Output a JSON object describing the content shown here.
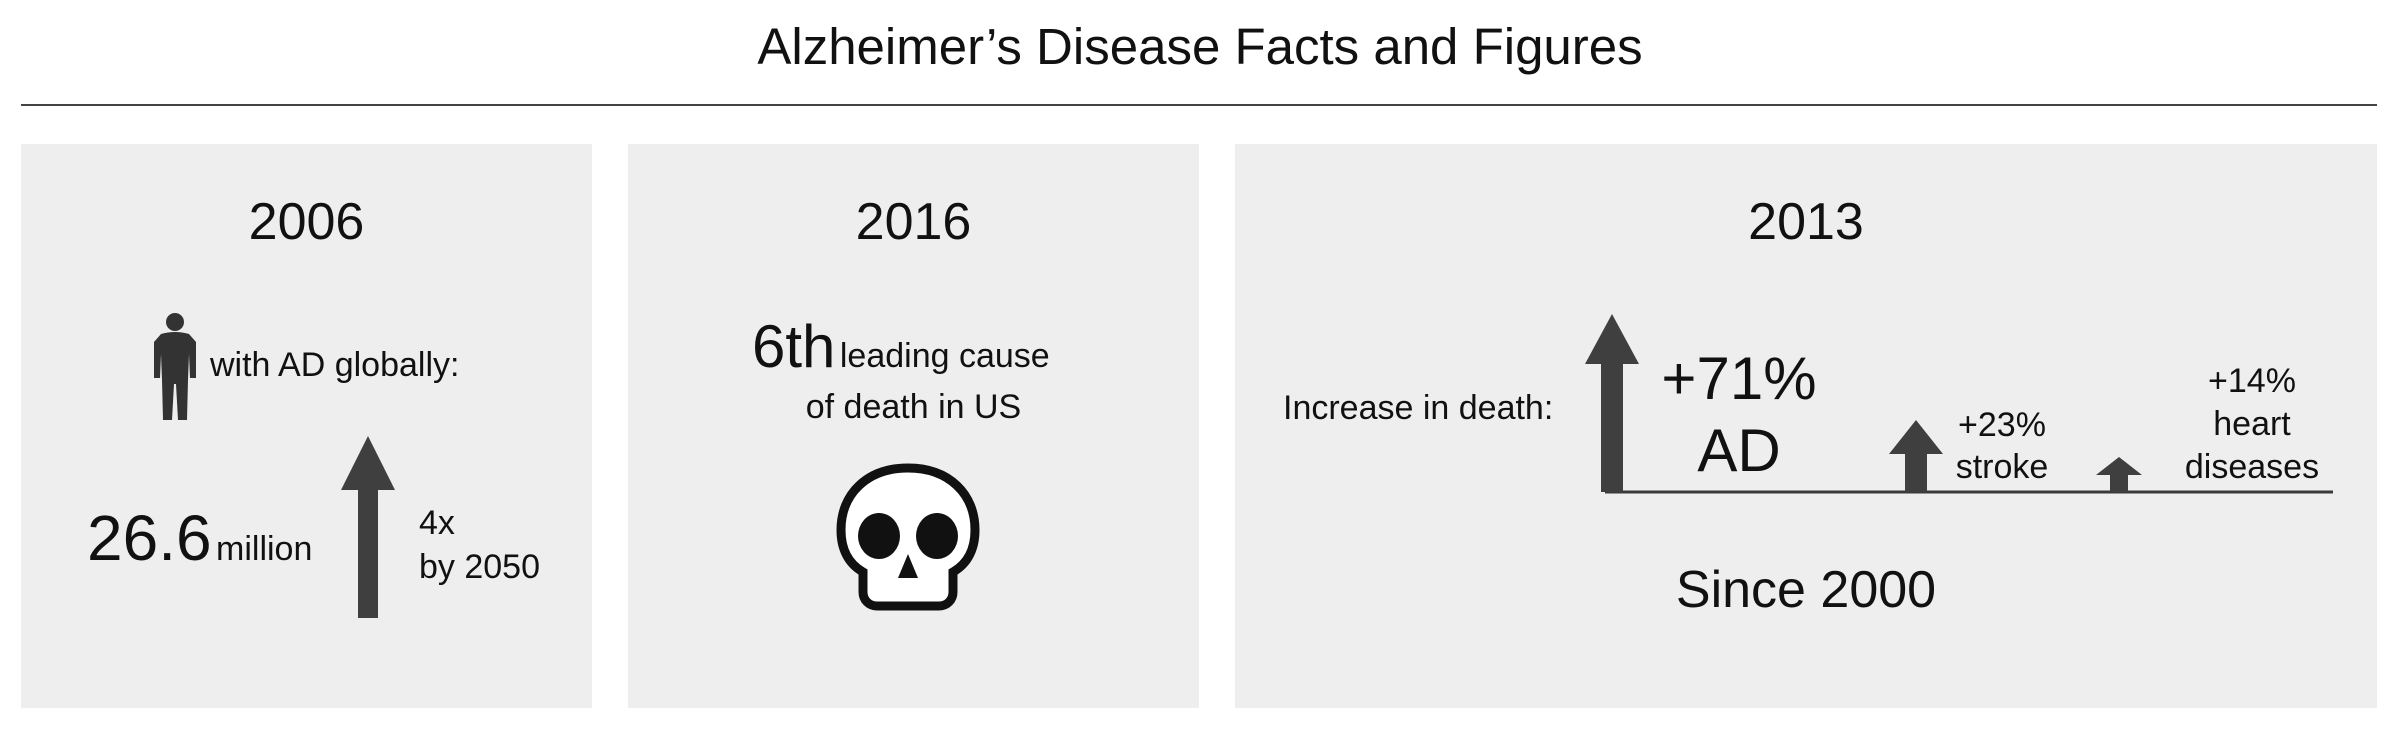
{
  "title": "Alzheimer’s Disease Facts and Figures",
  "panels": {
    "global": {
      "year": "2006",
      "icon": "person-silhouette-icon",
      "label": "with AD globally:",
      "count": "26.6",
      "count_unit": "million",
      "growth_line1": "4x",
      "growth_line2": "by 2050"
    },
    "rank": {
      "year": "2016",
      "rank": "6th",
      "line1": "leading cause",
      "line2": "of death in US",
      "icon": "skull-icon"
    },
    "deaths": {
      "year": "2013",
      "label": "Increase in death:",
      "footer": "Since 2000",
      "items": [
        {
          "value": "+71%",
          "name": "AD"
        },
        {
          "value": "+23%",
          "name": "stroke"
        },
        {
          "value": "+14%",
          "name_line1": "heart",
          "name_line2": "diseases"
        }
      ]
    }
  },
  "colors": {
    "panel_bg": "#eeeeee",
    "arrow": "#3f3f3f",
    "text": "#111111"
  }
}
